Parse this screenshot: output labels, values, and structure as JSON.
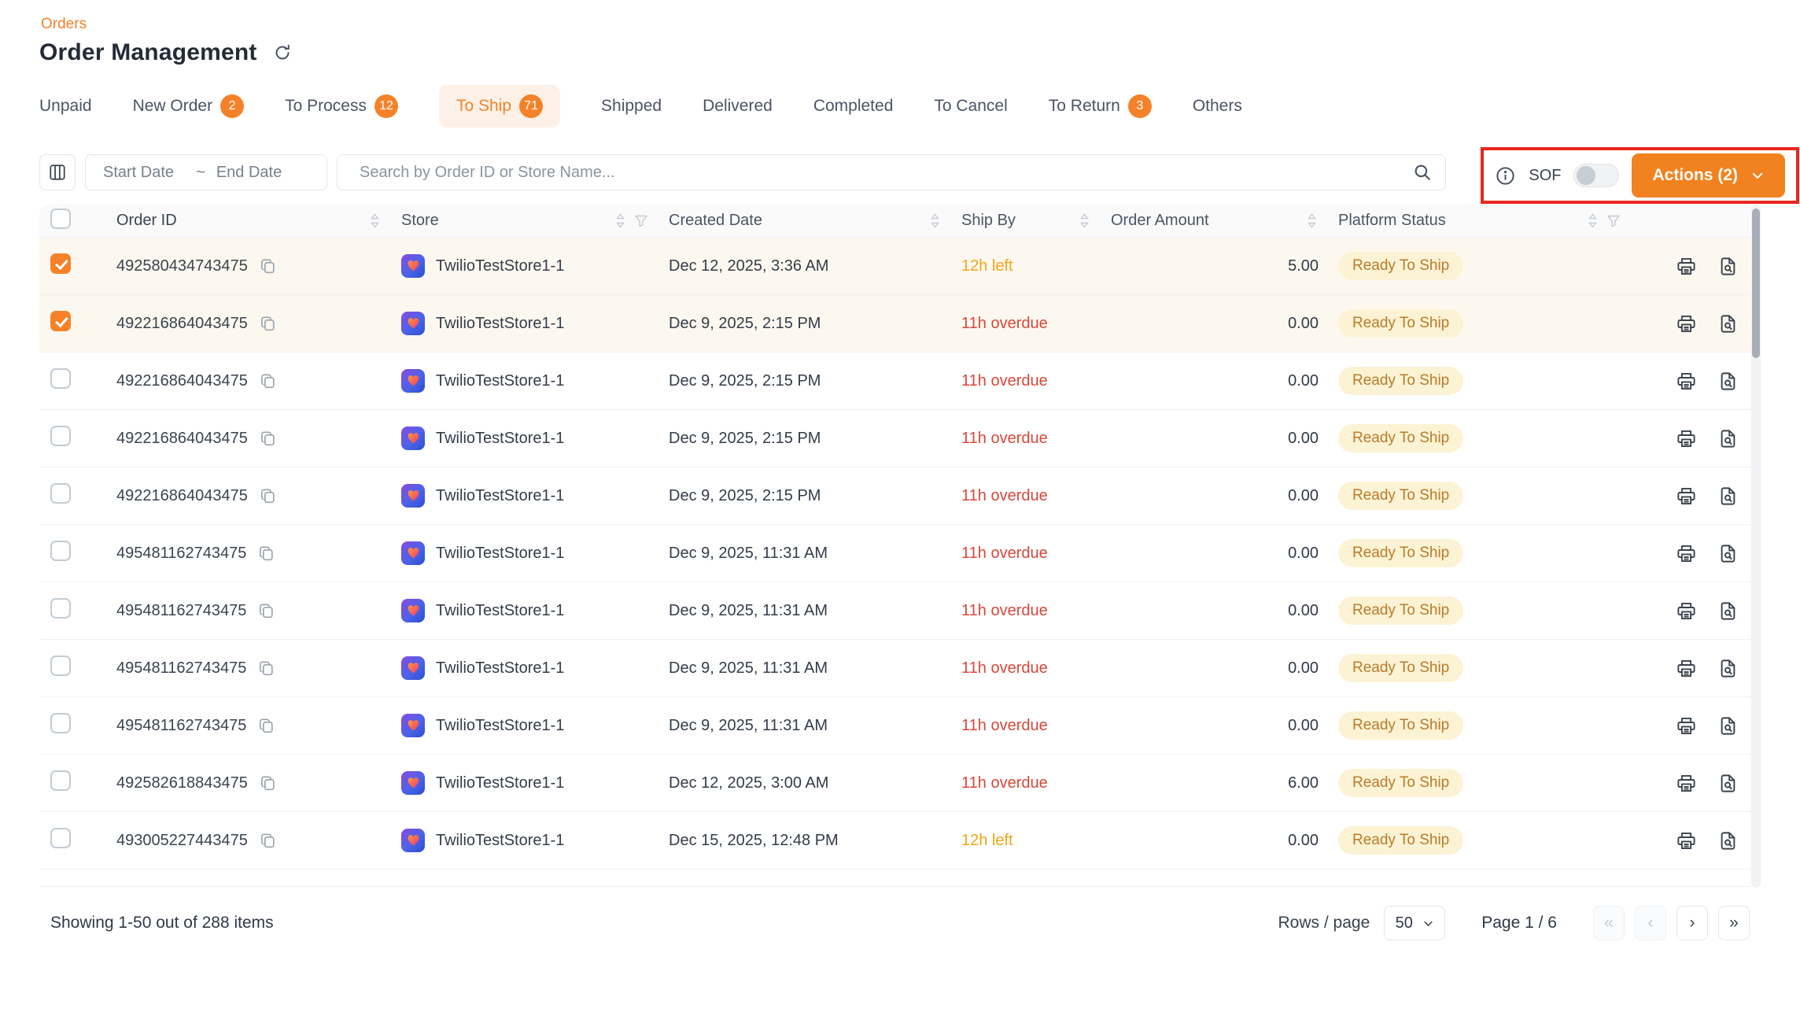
{
  "breadcrumb": {
    "label": "Orders"
  },
  "header": {
    "title": "Order Management"
  },
  "tabs": [
    {
      "label": "Unpaid"
    },
    {
      "label": "New Order",
      "badge": "2"
    },
    {
      "label": "To Process",
      "badge": "12"
    },
    {
      "label": "To Ship",
      "badge": "71",
      "active": true
    },
    {
      "label": "Shipped"
    },
    {
      "label": "Delivered"
    },
    {
      "label": "Completed"
    },
    {
      "label": "To Cancel"
    },
    {
      "label": "To Return",
      "badge": "3"
    },
    {
      "label": "Others"
    }
  ],
  "filters": {
    "start_date_placeholder": "Start Date",
    "date_separator": "~",
    "end_date_placeholder": "End Date",
    "search_placeholder": "Search by Order ID or Store Name...",
    "sof_label": "SOF",
    "sof_enabled": false,
    "actions_label": "Actions (2)"
  },
  "table": {
    "columns": [
      {
        "label": "Order ID",
        "sort": true,
        "filter": false
      },
      {
        "label": "Store",
        "sort": true,
        "filter": true
      },
      {
        "label": "Created Date",
        "sort": true,
        "filter": false
      },
      {
        "label": "Ship By",
        "sort": true,
        "filter": false
      },
      {
        "label": "Order Amount",
        "sort": true,
        "filter": false
      },
      {
        "label": "Platform Status",
        "sort": true,
        "filter": true
      }
    ],
    "rows": [
      {
        "checked": true,
        "order_id": "492580434743475",
        "store": "TwilioTestStore1-1",
        "created": "Dec 12, 2025, 3:36 AM",
        "ship_by": "12h left",
        "ship_state": "left",
        "amount": "5.00",
        "status": "Ready To Ship"
      },
      {
        "checked": true,
        "order_id": "492216864043475",
        "store": "TwilioTestStore1-1",
        "created": "Dec 9, 2025, 2:15 PM",
        "ship_by": "11h overdue",
        "ship_state": "overdue",
        "amount": "0.00",
        "status": "Ready To Ship"
      },
      {
        "checked": false,
        "order_id": "492216864043475",
        "store": "TwilioTestStore1-1",
        "created": "Dec 9, 2025, 2:15 PM",
        "ship_by": "11h overdue",
        "ship_state": "overdue",
        "amount": "0.00",
        "status": "Ready To Ship"
      },
      {
        "checked": false,
        "order_id": "492216864043475",
        "store": "TwilioTestStore1-1",
        "created": "Dec 9, 2025, 2:15 PM",
        "ship_by": "11h overdue",
        "ship_state": "overdue",
        "amount": "0.00",
        "status": "Ready To Ship"
      },
      {
        "checked": false,
        "order_id": "492216864043475",
        "store": "TwilioTestStore1-1",
        "created": "Dec 9, 2025, 2:15 PM",
        "ship_by": "11h overdue",
        "ship_state": "overdue",
        "amount": "0.00",
        "status": "Ready To Ship"
      },
      {
        "checked": false,
        "order_id": "495481162743475",
        "store": "TwilioTestStore1-1",
        "created": "Dec 9, 2025, 11:31 AM",
        "ship_by": "11h overdue",
        "ship_state": "overdue",
        "amount": "0.00",
        "status": "Ready To Ship"
      },
      {
        "checked": false,
        "order_id": "495481162743475",
        "store": "TwilioTestStore1-1",
        "created": "Dec 9, 2025, 11:31 AM",
        "ship_by": "11h overdue",
        "ship_state": "overdue",
        "amount": "0.00",
        "status": "Ready To Ship"
      },
      {
        "checked": false,
        "order_id": "495481162743475",
        "store": "TwilioTestStore1-1",
        "created": "Dec 9, 2025, 11:31 AM",
        "ship_by": "11h overdue",
        "ship_state": "overdue",
        "amount": "0.00",
        "status": "Ready To Ship"
      },
      {
        "checked": false,
        "order_id": "495481162743475",
        "store": "TwilioTestStore1-1",
        "created": "Dec 9, 2025, 11:31 AM",
        "ship_by": "11h overdue",
        "ship_state": "overdue",
        "amount": "0.00",
        "status": "Ready To Ship"
      },
      {
        "checked": false,
        "order_id": "492582618843475",
        "store": "TwilioTestStore1-1",
        "created": "Dec 12, 2025, 3:00 AM",
        "ship_by": "11h overdue",
        "ship_state": "overdue",
        "amount": "6.00",
        "status": "Ready To Ship"
      },
      {
        "checked": false,
        "order_id": "493005227443475",
        "store": "TwilioTestStore1-1",
        "created": "Dec 15, 2025, 12:48 PM",
        "ship_by": "12h left",
        "ship_state": "left",
        "amount": "0.00",
        "status": "Ready To Ship"
      }
    ]
  },
  "footer": {
    "summary": "Showing 1-50 out of 288 items",
    "rows_per_page_label": "Rows / page",
    "rows_per_page_value": "50",
    "page_label": "Page 1 / 6",
    "pagination": {
      "first": "«",
      "prev": "‹",
      "next": "›",
      "last": "»"
    }
  },
  "colors": {
    "accent": "#F5822A",
    "annotation_red": "#E8271E",
    "overdue_red": "#D8473A",
    "due_soon_amber": "#F2A416",
    "status_badge_bg": "#FBF3D4",
    "status_badge_text": "#B97B2A",
    "selected_row_bg": "#FDF8EF"
  }
}
